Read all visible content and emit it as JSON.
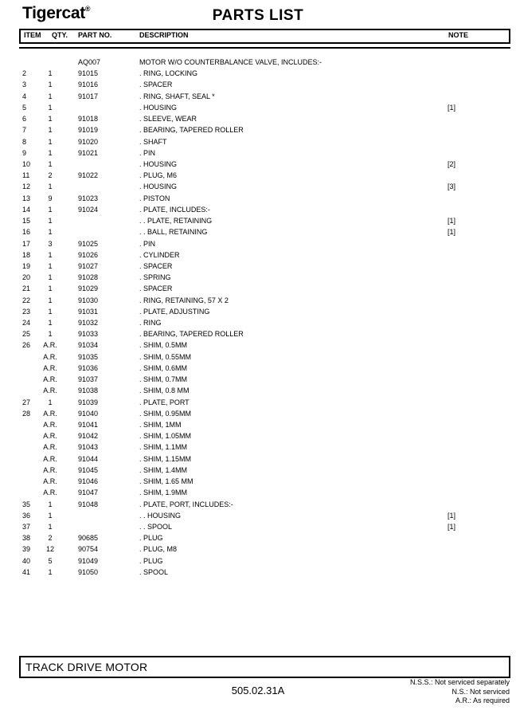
{
  "colors": {
    "background": "#ffffff",
    "text": "#000000",
    "border": "#000000"
  },
  "page": {
    "logo": "Tigercat",
    "logo_reg": "®",
    "title": "PARTS LIST",
    "part_code": "505.02.31A",
    "footer_box_title": "TRACK DRIVE MOTOR"
  },
  "legend": [
    "N.S.S.: Not serviced separately",
    "N.S.: Not serviced",
    "A.R.: As required"
  ],
  "table": {
    "columns": [
      "ITEM",
      "QTY.",
      "PART NO.",
      "DESCRIPTION",
      "NOTE"
    ],
    "rows": [
      {
        "item": "",
        "qty": "",
        "part": "AQ007",
        "desc": "MOTOR W/O COUNTERBALANCE VALVE, INCLUDES:-",
        "note": ""
      },
      {
        "item": "2",
        "qty": "1",
        "part": "91015",
        "desc": ". RING, LOCKING",
        "note": ""
      },
      {
        "item": "3",
        "qty": "1",
        "part": "91016",
        "desc": ". SPACER",
        "note": ""
      },
      {
        "item": "4",
        "qty": "1",
        "part": "91017",
        "desc": ". RING, SHAFT, SEAL *",
        "note": ""
      },
      {
        "item": "5",
        "qty": "1",
        "part": "",
        "desc": ". HOUSING",
        "note": "[1]"
      },
      {
        "item": "6",
        "qty": "1",
        "part": "91018",
        "desc": ". SLEEVE, WEAR",
        "note": ""
      },
      {
        "item": "7",
        "qty": "1",
        "part": "91019",
        "desc": ". BEARING, TAPERED ROLLER",
        "note": ""
      },
      {
        "item": "8",
        "qty": "1",
        "part": "91020",
        "desc": ". SHAFT",
        "note": ""
      },
      {
        "item": "9",
        "qty": "1",
        "part": "91021",
        "desc": ". PIN",
        "note": ""
      },
      {
        "item": "10",
        "qty": "1",
        "part": "",
        "desc": ". HOUSING",
        "note": "[2]"
      },
      {
        "item": "11",
        "qty": "2",
        "part": "91022",
        "desc": ". PLUG, M6",
        "note": ""
      },
      {
        "item": "12",
        "qty": "1",
        "part": "",
        "desc": ". HOUSING",
        "note": "[3]"
      },
      {
        "item": "13",
        "qty": "9",
        "part": "91023",
        "desc": ". PISTON",
        "note": ""
      },
      {
        "item": "14",
        "qty": "1",
        "part": "91024",
        "desc": ". PLATE, INCLUDES:-",
        "note": ""
      },
      {
        "item": "15",
        "qty": "1",
        "part": "",
        "desc": ". . PLATE, RETAINING",
        "note": "[1]"
      },
      {
        "item": "16",
        "qty": "1",
        "part": "",
        "desc": ". . BALL, RETAINING",
        "note": "[1]"
      },
      {
        "item": "17",
        "qty": "3",
        "part": "91025",
        "desc": ". PIN",
        "note": ""
      },
      {
        "item": "18",
        "qty": "1",
        "part": "91026",
        "desc": ". CYLINDER",
        "note": ""
      },
      {
        "item": "19",
        "qty": "1",
        "part": "91027",
        "desc": ". SPACER",
        "note": ""
      },
      {
        "item": "20",
        "qty": "1",
        "part": "91028",
        "desc": ". SPRING",
        "note": ""
      },
      {
        "item": "21",
        "qty": "1",
        "part": "91029",
        "desc": ". SPACER",
        "note": ""
      },
      {
        "item": "22",
        "qty": "1",
        "part": "91030",
        "desc": ". RING, RETAINING, 57 X 2",
        "note": ""
      },
      {
        "item": "23",
        "qty": "1",
        "part": "91031",
        "desc": ". PLATE, ADJUSTING",
        "note": ""
      },
      {
        "item": "24",
        "qty": "1",
        "part": "91032",
        "desc": ". RING",
        "note": ""
      },
      {
        "item": "25",
        "qty": "1",
        "part": "91033",
        "desc": ". BEARING, TAPERED ROLLER",
        "note": ""
      },
      {
        "item": "26",
        "qty": "A.R.",
        "part": "91034",
        "desc": ". SHIM, 0.5MM",
        "note": ""
      },
      {
        "item": "",
        "qty": "A.R.",
        "part": "91035",
        "desc": ". SHIM, 0.55MM",
        "note": ""
      },
      {
        "item": "",
        "qty": "A.R.",
        "part": "91036",
        "desc": ". SHIM, 0.6MM",
        "note": ""
      },
      {
        "item": "",
        "qty": "A.R.",
        "part": "91037",
        "desc": ". SHIM, 0.7MM",
        "note": ""
      },
      {
        "item": "",
        "qty": "A.R.",
        "part": "91038",
        "desc": ". SHIM, 0.8 MM",
        "note": ""
      },
      {
        "item": "27",
        "qty": "1",
        "part": "91039",
        "desc": ". PLATE, PORT",
        "note": ""
      },
      {
        "item": "28",
        "qty": "A.R.",
        "part": "91040",
        "desc": ". SHIM, 0.95MM",
        "note": ""
      },
      {
        "item": "",
        "qty": "A.R.",
        "part": "91041",
        "desc": ". SHIM, 1MM",
        "note": ""
      },
      {
        "item": "",
        "qty": "A.R.",
        "part": "91042",
        "desc": ". SHIM, 1.05MM",
        "note": ""
      },
      {
        "item": "",
        "qty": "A.R.",
        "part": "91043",
        "desc": ". SHIM, 1.1MM",
        "note": ""
      },
      {
        "item": "",
        "qty": "A.R.",
        "part": "91044",
        "desc": ". SHIM, 1.15MM",
        "note": ""
      },
      {
        "item": "",
        "qty": "A.R.",
        "part": "91045",
        "desc": ". SHIM, 1.4MM",
        "note": ""
      },
      {
        "item": "",
        "qty": "A.R.",
        "part": "91046",
        "desc": ". SHIM, 1.65 MM",
        "note": ""
      },
      {
        "item": "",
        "qty": "A.R.",
        "part": "91047",
        "desc": ". SHIM, 1.9MM",
        "note": ""
      },
      {
        "item": "35",
        "qty": "1",
        "part": "91048",
        "desc": ". PLATE, PORT, INCLUDES:-",
        "note": ""
      },
      {
        "item": "36",
        "qty": "1",
        "part": "",
        "desc": ". . HOUSING",
        "note": "[1]"
      },
      {
        "item": "37",
        "qty": "1",
        "part": "",
        "desc": ". . SPOOL",
        "note": "[1]"
      },
      {
        "item": "38",
        "qty": "2",
        "part": "90685",
        "desc": ". PLUG",
        "note": ""
      },
      {
        "item": "39",
        "qty": "12",
        "part": "90754",
        "desc": ". PLUG, M8",
        "note": ""
      },
      {
        "item": "40",
        "qty": "5",
        "part": "91049",
        "desc": ". PLUG",
        "note": ""
      },
      {
        "item": "41",
        "qty": "1",
        "part": "91050",
        "desc": ". SPOOL",
        "note": ""
      }
    ]
  }
}
